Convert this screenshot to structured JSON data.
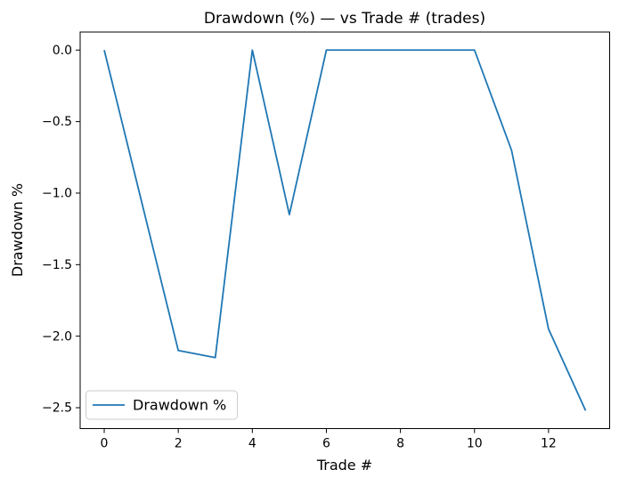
{
  "chart_data": {
    "type": "line",
    "title": "Drawdown (%) — vs Trade # (trades)",
    "xlabel": "Trade #",
    "ylabel": "Drawdown %",
    "x": [
      0,
      1,
      2,
      3,
      4,
      5,
      6,
      7,
      8,
      9,
      10,
      11,
      12,
      13
    ],
    "series": [
      {
        "name": "Drawdown %",
        "color": "#1f77b4",
        "values": [
          0.0,
          -1.05,
          -2.1,
          -2.15,
          0.0,
          -1.15,
          0.0,
          0.0,
          0.0,
          0.0,
          0.0,
          -0.7,
          -1.95,
          -2.52
        ]
      }
    ],
    "xlim": [
      -0.65,
      13.65
    ],
    "ylim": [
      -2.646,
      0.126
    ],
    "xticks": {
      "values": [
        0,
        2,
        4,
        6,
        8,
        10,
        12
      ],
      "labels": [
        "0",
        "2",
        "4",
        "6",
        "8",
        "10",
        "12"
      ]
    },
    "yticks": {
      "values": [
        0.0,
        -0.5,
        -1.0,
        -1.5,
        -2.0,
        -2.5
      ],
      "labels": [
        "0.0",
        "−0.5",
        "−1.0",
        "−1.5",
        "−2.0",
        "−2.5"
      ]
    },
    "grid": false,
    "legend": {
      "position": "lower left",
      "entries": [
        "Drawdown %"
      ]
    },
    "colors": {
      "line": "#1f77b4",
      "spine": "#000000",
      "legend_border": "#cccccc",
      "background": "#ffffff"
    }
  }
}
